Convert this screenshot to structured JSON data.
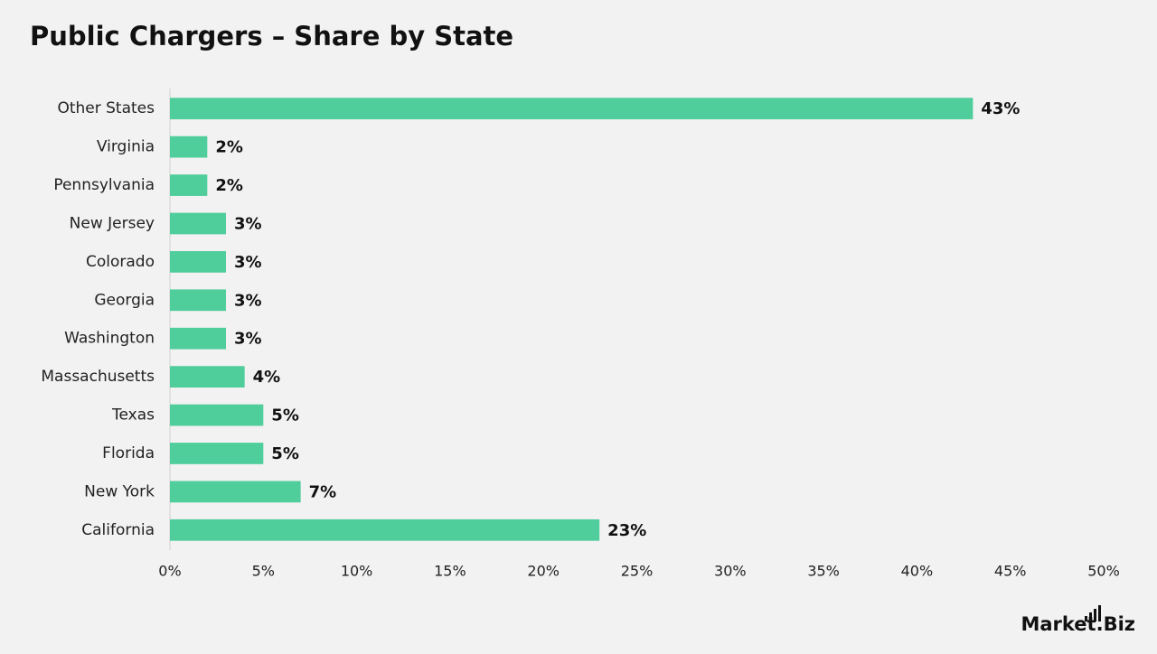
{
  "chart_data": {
    "type": "hbar",
    "title": "Public Chargers – Share by State",
    "categories": [
      "Other States",
      "Virginia",
      "Pennsylvania",
      "New Jersey",
      "Colorado",
      "Georgia",
      "Washington",
      "Massachusetts",
      "Texas",
      "Florida",
      "New York",
      "California"
    ],
    "values": [
      43,
      2,
      2,
      3,
      3,
      3,
      3,
      4,
      5,
      5,
      7,
      23
    ],
    "value_labels": [
      "43%",
      "2%",
      "2%",
      "3%",
      "3%",
      "3%",
      "3%",
      "4%",
      "5%",
      "5%",
      "7%",
      "23%"
    ],
    "color": "#4fcd9b",
    "xlim": [
      0,
      50
    ],
    "xticks": [
      {
        "value": 0,
        "label": "0%"
      },
      {
        "value": 5,
        "label": "5%"
      },
      {
        "value": 10,
        "label": "10%"
      },
      {
        "value": 15,
        "label": "15%"
      },
      {
        "value": 20,
        "label": "20%"
      },
      {
        "value": 25,
        "label": "25%"
      },
      {
        "value": 30,
        "label": "30%"
      },
      {
        "value": 35,
        "label": "35%"
      },
      {
        "value": 40,
        "label": "40%"
      },
      {
        "value": 45,
        "label": "45%"
      },
      {
        "value": 50,
        "label": "50%"
      }
    ],
    "grid": false
  },
  "brand": "Market.Biz"
}
